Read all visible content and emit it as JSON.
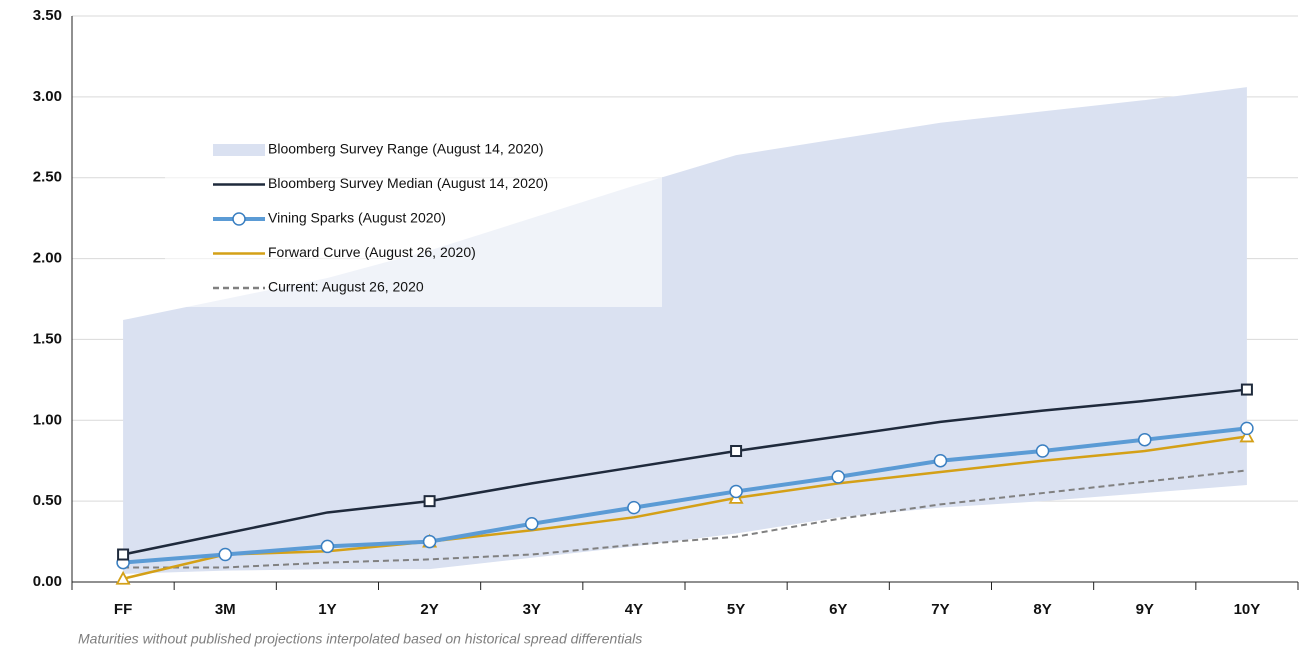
{
  "chart_data": {
    "type": "line",
    "footnote": "Maturities without published projections interpolated based on historical spread differentials",
    "categories": [
      "FF",
      "3M",
      "1Y",
      "2Y",
      "3Y",
      "4Y",
      "5Y",
      "6Y",
      "7Y",
      "8Y",
      "9Y",
      "10Y"
    ],
    "ylim": [
      0,
      3.5
    ],
    "yticks": [
      {
        "value": 0,
        "label": "0.00"
      },
      {
        "value": 0.5,
        "label": "0.50"
      },
      {
        "value": 1,
        "label": "1.00"
      },
      {
        "value": 1.5,
        "label": "1.50"
      },
      {
        "value": 2,
        "label": "2.00"
      },
      {
        "value": 2.5,
        "label": "2.50"
      },
      {
        "value": 3,
        "label": "3.00"
      },
      {
        "value": 3.5,
        "label": "3.50"
      }
    ],
    "grid": true,
    "series": [
      {
        "name": "Bloomberg Survey Range (August 14, 2020)",
        "type": "range",
        "color": "#dae1f1",
        "upper": [
          1.62,
          1.75,
          1.88,
          2.05,
          2.25,
          2.45,
          2.64,
          2.74,
          2.84,
          2.91,
          2.98,
          3.06
        ],
        "lower": [
          0.05,
          0.07,
          0.08,
          0.08,
          0.15,
          0.22,
          0.3,
          0.4,
          0.46,
          0.5,
          0.55,
          0.6
        ]
      },
      {
        "name": "Bloomberg Survey Median (August 14, 2020)",
        "color": "#1f2a3c",
        "marker": "square",
        "marker_indices": [
          0,
          3,
          6,
          11
        ],
        "values": [
          0.17,
          0.3,
          0.43,
          0.5,
          0.61,
          0.71,
          0.81,
          0.9,
          0.99,
          1.06,
          1.12,
          1.19
        ]
      },
      {
        "name": "Vining Sparks (August 2020)",
        "color": "#5b9bd5",
        "marker": "circle",
        "marker_indices": [
          0,
          1,
          2,
          3,
          4,
          5,
          6,
          7,
          8,
          9,
          10,
          11
        ],
        "values": [
          0.12,
          0.17,
          0.22,
          0.25,
          0.36,
          0.46,
          0.56,
          0.65,
          0.75,
          0.81,
          0.88,
          0.95
        ]
      },
      {
        "name": "Forward Curve (August 26, 2020)",
        "color": "#d4a017",
        "marker": "triangle",
        "marker_indices": [
          0,
          3,
          6,
          11
        ],
        "values": [
          0.02,
          0.17,
          0.19,
          0.25,
          0.32,
          0.4,
          0.52,
          0.61,
          0.68,
          0.75,
          0.81,
          0.9
        ]
      },
      {
        "name": "Current: August 26, 2020",
        "color": "#808080",
        "dash": true,
        "values": [
          0.09,
          0.09,
          0.12,
          0.14,
          0.17,
          0.23,
          0.28,
          0.39,
          0.48,
          0.55,
          0.62,
          0.69
        ]
      }
    ]
  }
}
